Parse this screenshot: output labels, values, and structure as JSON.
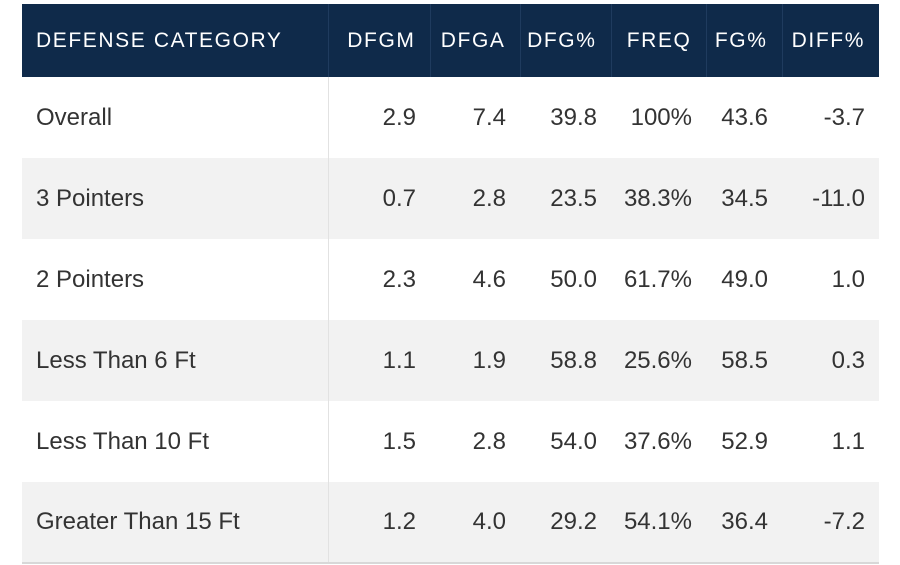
{
  "table": {
    "columns": [
      "DEFENSE CATEGORY",
      "DFGM",
      "DFGA",
      "DFG%",
      "FREQ",
      "FG%",
      "DIFF%"
    ],
    "rows": [
      {
        "category": "Overall",
        "dfgm": "2.9",
        "dfga": "7.4",
        "dfg_pct": "39.8",
        "freq": "100%",
        "fg_pct": "43.6",
        "diff_pct": "-3.7"
      },
      {
        "category": "3 Pointers",
        "dfgm": "0.7",
        "dfga": "2.8",
        "dfg_pct": "23.5",
        "freq": "38.3%",
        "fg_pct": "34.5",
        "diff_pct": "-11.0"
      },
      {
        "category": "2 Pointers",
        "dfgm": "2.3",
        "dfga": "4.6",
        "dfg_pct": "50.0",
        "freq": "61.7%",
        "fg_pct": "49.0",
        "diff_pct": "1.0"
      },
      {
        "category": "Less Than 6 Ft",
        "dfgm": "1.1",
        "dfga": "1.9",
        "dfg_pct": "58.8",
        "freq": "25.6%",
        "fg_pct": "58.5",
        "diff_pct": "0.3"
      },
      {
        "category": "Less Than 10 Ft",
        "dfgm": "1.5",
        "dfga": "2.8",
        "dfg_pct": "54.0",
        "freq": "37.6%",
        "fg_pct": "52.9",
        "diff_pct": "1.1"
      },
      {
        "category": "Greater Than 15 Ft",
        "dfgm": "1.2",
        "dfga": "4.0",
        "dfg_pct": "29.2",
        "freq": "54.1%",
        "fg_pct": "36.4",
        "diff_pct": "-7.2"
      }
    ]
  },
  "colors": {
    "header_bg": "#0f2a4a",
    "header_text": "#ffffff",
    "row_alt_bg": "#f2f2f2",
    "cell_text": "#333333"
  }
}
